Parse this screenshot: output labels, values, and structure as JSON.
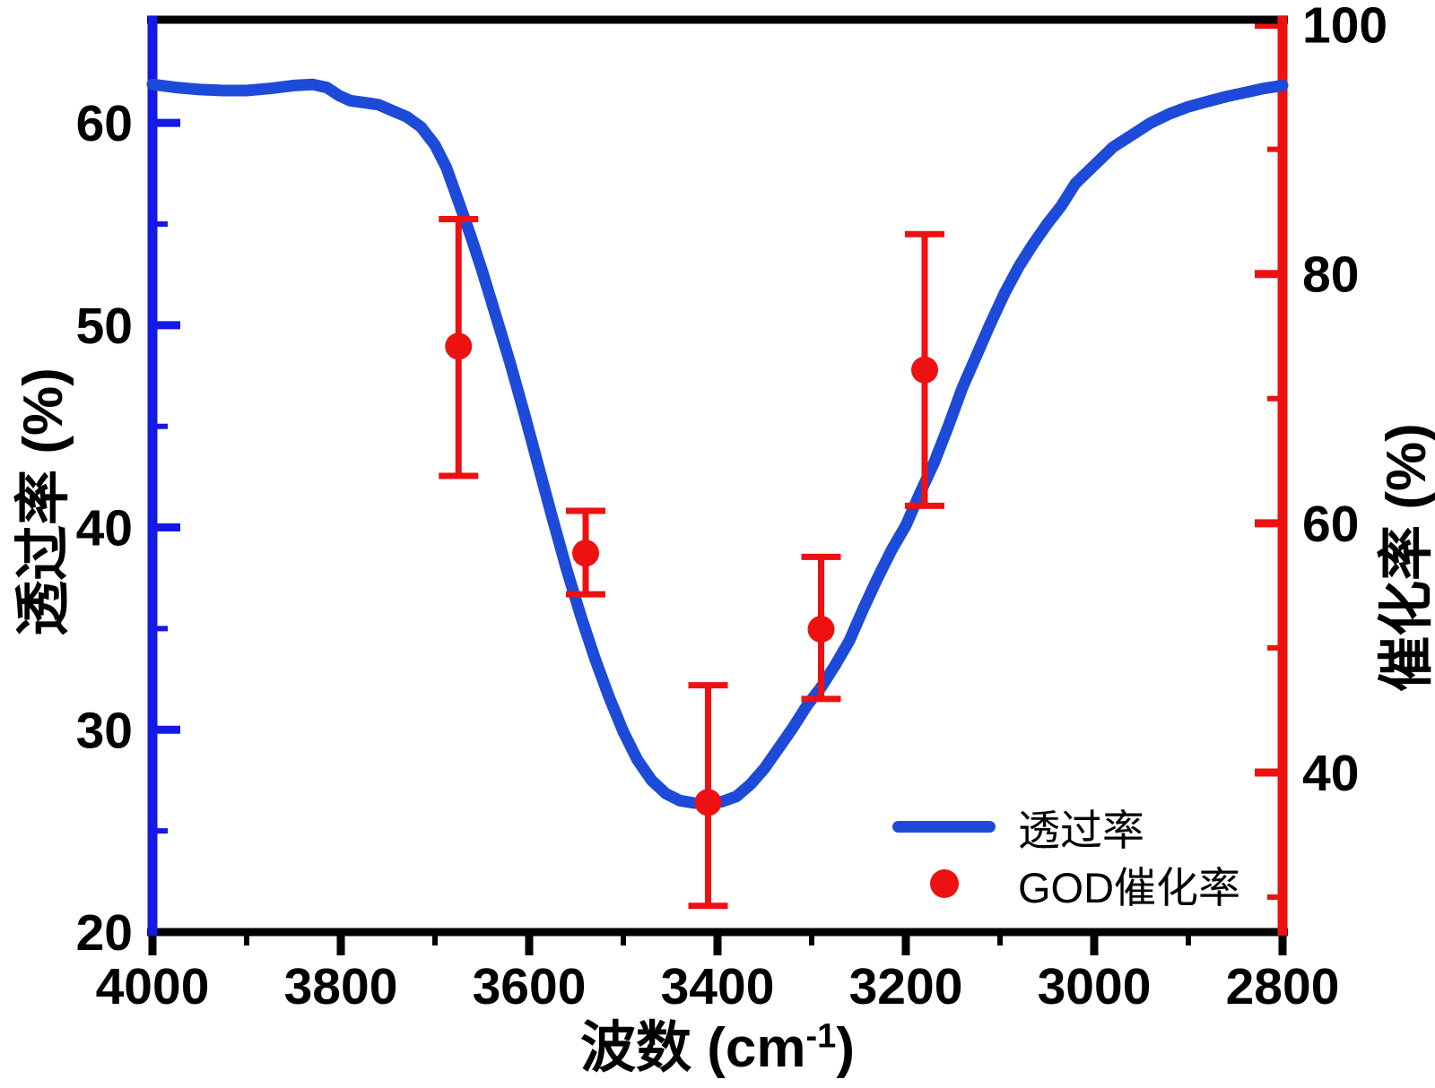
{
  "chart_data": {
    "type": "line",
    "title": "",
    "xlabel_prefix": "波数 (cm",
    "xlabel_sup": "-1",
    "xlabel_suffix": ")",
    "xlabel_full": "波数 (cm⁻¹)",
    "ylabel_left": "透过率 (%)",
    "ylabel_right": "催化率 (%)",
    "x_axis": {
      "min": 2800,
      "max": 4000,
      "reversed": true,
      "major_ticks": [
        4000,
        3800,
        3600,
        3400,
        3200,
        3000,
        2800
      ],
      "minor_ticks": [
        3900,
        3700,
        3500,
        3300,
        3100,
        2900
      ],
      "axis_color": "#000000"
    },
    "y_left": {
      "min": 20,
      "max": 65.1,
      "major_ticks": [
        60,
        50,
        40,
        30,
        20
      ],
      "minor_ticks": [
        55,
        45,
        35,
        25
      ],
      "axis_color": "#1419e6",
      "tick_label_color": "#000000"
    },
    "y_right": {
      "min": 27.2,
      "max": 100.4,
      "major_ticks": [
        100,
        80,
        60,
        40
      ],
      "minor_ticks": [
        90,
        70,
        50,
        30
      ],
      "axis_color": "#ee1111",
      "tick_label_color": "#000000"
    },
    "grid": false,
    "legend": {
      "position": "inside lower right"
    },
    "series": [
      {
        "name": "透过率",
        "type": "line",
        "axis": "left",
        "color": "#1d4ad8",
        "points": [
          [
            4000,
            61.9
          ],
          [
            3975,
            61.75
          ],
          [
            3950,
            61.65
          ],
          [
            3925,
            61.6
          ],
          [
            3900,
            61.6
          ],
          [
            3875,
            61.7
          ],
          [
            3850,
            61.85
          ],
          [
            3830,
            61.9
          ],
          [
            3815,
            61.75
          ],
          [
            3802,
            61.35
          ],
          [
            3790,
            61.1
          ],
          [
            3775,
            61.0
          ],
          [
            3760,
            60.9
          ],
          [
            3745,
            60.6
          ],
          [
            3730,
            60.3
          ],
          [
            3715,
            59.8
          ],
          [
            3700,
            58.9
          ],
          [
            3688,
            57.8
          ],
          [
            3675,
            56.1
          ],
          [
            3662,
            54.4
          ],
          [
            3650,
            52.7
          ],
          [
            3635,
            50.4
          ],
          [
            3620,
            48.1
          ],
          [
            3605,
            45.6
          ],
          [
            3590,
            43.0
          ],
          [
            3575,
            40.4
          ],
          [
            3560,
            37.9
          ],
          [
            3545,
            35.6
          ],
          [
            3530,
            33.5
          ],
          [
            3515,
            31.6
          ],
          [
            3500,
            29.9
          ],
          [
            3485,
            28.5
          ],
          [
            3470,
            27.5
          ],
          [
            3455,
            26.85
          ],
          [
            3440,
            26.5
          ],
          [
            3425,
            26.38
          ],
          [
            3410,
            26.35
          ],
          [
            3395,
            26.45
          ],
          [
            3380,
            26.7
          ],
          [
            3365,
            27.3
          ],
          [
            3350,
            28.1
          ],
          [
            3335,
            29.1
          ],
          [
            3320,
            30.1
          ],
          [
            3305,
            31.2
          ],
          [
            3290,
            32.1
          ],
          [
            3275,
            33.2
          ],
          [
            3260,
            34.4
          ],
          [
            3245,
            36.0
          ],
          [
            3230,
            37.5
          ],
          [
            3215,
            38.9
          ],
          [
            3200,
            40.1
          ],
          [
            3185,
            41.7
          ],
          [
            3170,
            43.2
          ],
          [
            3155,
            45.0
          ],
          [
            3140,
            46.9
          ],
          [
            3125,
            48.5
          ],
          [
            3110,
            50.1
          ],
          [
            3095,
            51.6
          ],
          [
            3080,
            52.9
          ],
          [
            3065,
            54.0
          ],
          [
            3050,
            55.0
          ],
          [
            3035,
            55.9
          ],
          [
            3020,
            57.0
          ],
          [
            3000,
            57.9
          ],
          [
            2980,
            58.8
          ],
          [
            2960,
            59.4
          ],
          [
            2940,
            60.0
          ],
          [
            2920,
            60.45
          ],
          [
            2900,
            60.8
          ],
          [
            2880,
            61.05
          ],
          [
            2860,
            61.3
          ],
          [
            2840,
            61.5
          ],
          [
            2820,
            61.7
          ],
          [
            2800,
            61.85
          ]
        ]
      },
      {
        "name": "GOD催化率",
        "type": "scatter_errorbar",
        "axis": "right",
        "color": "#ee1111",
        "marker_radius": 15,
        "points": [
          {
            "x": 3675,
            "y": 74.2,
            "err_up": 10.2,
            "err_down": 10.4
          },
          {
            "x": 3540,
            "y": 57.6,
            "err_up": 3.4,
            "err_down": 3.3
          },
          {
            "x": 3410,
            "y": 37.6,
            "err_up": 9.4,
            "err_down": 8.3
          },
          {
            "x": 3290,
            "y": 51.5,
            "err_up": 5.8,
            "err_down": 5.6
          },
          {
            "x": 3180,
            "y": 72.3,
            "err_up": 10.9,
            "err_down": 10.9
          }
        ]
      }
    ]
  },
  "colors": {
    "background": "#ffffff",
    "frame": "#000000",
    "left_axis_blue": "#1419e6",
    "curve_blue": "#1d4ad8",
    "red": "#ee1111"
  }
}
